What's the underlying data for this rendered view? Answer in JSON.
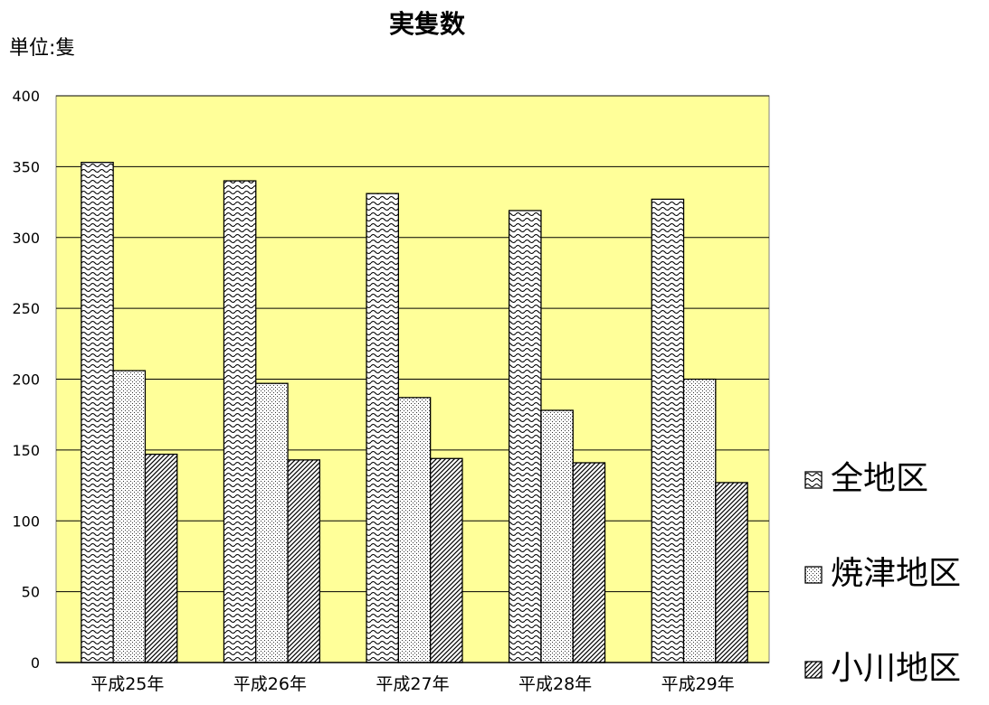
{
  "chart_data": {
    "type": "bar",
    "title": "実隻数",
    "unit_label": "単位:隻",
    "xlabel": "",
    "ylabel": "",
    "categories": [
      "平成25年",
      "平成26年",
      "平成27年",
      "平成28年",
      "平成29年"
    ],
    "series": [
      {
        "name": "全地区",
        "values": [
          353,
          340,
          331,
          319,
          327
        ],
        "pattern": "wave"
      },
      {
        "name": "焼津地区",
        "values": [
          206,
          197,
          187,
          178,
          200
        ],
        "pattern": "dots"
      },
      {
        "name": "小川地区",
        "values": [
          147,
          143,
          144,
          141,
          127
        ],
        "pattern": "diagonal"
      }
    ],
    "ylim": [
      0,
      400
    ],
    "yticks": [
      0,
      50,
      100,
      150,
      200,
      250,
      300,
      350,
      400
    ],
    "grid": true,
    "legend_position": "right",
    "colors": {
      "plot_background": "#FFFF99",
      "bar_fill": "#FFFFFF",
      "bar_stroke": "#000000",
      "gridline": "#000000"
    }
  }
}
